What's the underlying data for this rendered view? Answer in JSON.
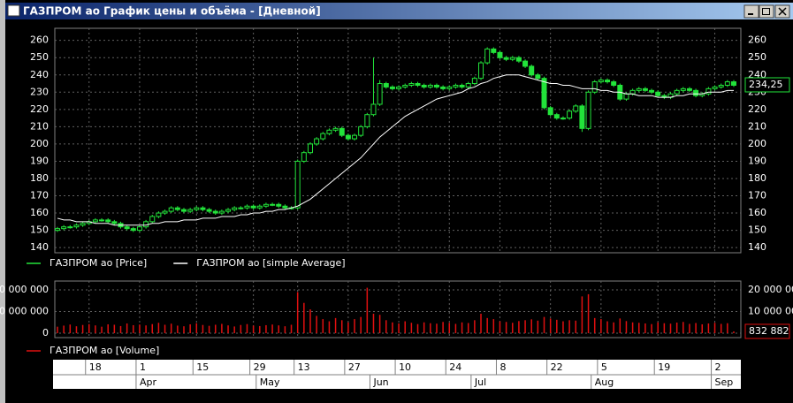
{
  "window": {
    "title": "ГАЗПРОМ ао График цены и объёма - [Дневной]"
  },
  "chart_data": [
    {
      "type": "candlestick",
      "ylim": [
        137,
        267
      ],
      "yticks": [
        140,
        150,
        160,
        170,
        180,
        190,
        200,
        210,
        220,
        230,
        240,
        250,
        260
      ],
      "grid": true,
      "xlim": [
        0,
        107
      ],
      "xticks": [
        {
          "value": 5,
          "label": "18"
        },
        {
          "value": 13,
          "label": "1"
        },
        {
          "value": 22,
          "label": "15"
        },
        {
          "value": 31,
          "label": "29"
        },
        {
          "value": 38,
          "label": "13"
        },
        {
          "value": 46,
          "label": "27"
        },
        {
          "value": 54,
          "label": "10"
        },
        {
          "value": 62,
          "label": "24"
        },
        {
          "value": 70,
          "label": "8"
        },
        {
          "value": 78,
          "label": "22"
        },
        {
          "value": 86,
          "label": "5"
        },
        {
          "value": 95,
          "label": "19"
        },
        {
          "value": 104,
          "label": "2"
        }
      ],
      "month_ticks": [
        {
          "value": 13,
          "label": "Apr"
        },
        {
          "value": 32,
          "label": "May"
        },
        {
          "value": 50,
          "label": "Jun"
        },
        {
          "value": 66,
          "label": "Jul"
        },
        {
          "value": 85,
          "label": "Aug"
        },
        {
          "value": 104,
          "label": "Sep"
        }
      ],
      "last_label": {
        "value": 234.25,
        "label": "234,25"
      },
      "series": [
        {
          "name": "ГАЗПРОМ ао [Price]",
          "color": "#22e33a",
          "open": [
            150,
            151,
            152,
            152,
            153,
            154,
            155,
            156,
            156,
            155,
            154,
            152,
            151,
            150,
            152,
            155,
            158,
            160,
            161,
            163,
            162,
            161,
            162,
            163,
            162,
            161,
            160,
            161,
            162,
            163,
            163,
            164,
            163,
            164,
            165,
            165,
            164,
            163,
            163,
            190,
            195,
            200,
            203,
            206,
            208,
            209,
            205,
            203,
            205,
            210,
            217,
            223,
            235,
            233,
            232,
            233,
            234,
            235,
            234,
            233,
            234,
            233,
            232,
            233,
            234,
            233,
            235,
            238,
            247,
            255,
            253,
            250,
            249,
            250,
            248,
            245,
            240,
            238,
            221,
            217,
            215,
            215,
            219,
            222,
            209,
            230,
            236,
            237,
            236,
            234,
            226,
            229,
            231,
            232,
            231,
            230,
            228,
            227,
            229,
            231,
            232,
            231,
            228,
            229,
            232,
            233,
            234,
            236
          ],
          "high": [
            152,
            153,
            153,
            154,
            155,
            156,
            157,
            157,
            157,
            156,
            155,
            153,
            152,
            153,
            156,
            159,
            161,
            162,
            164,
            164,
            163,
            163,
            164,
            164,
            163,
            162,
            162,
            163,
            164,
            164,
            165,
            165,
            165,
            166,
            166,
            166,
            165,
            164,
            191,
            196,
            201,
            204,
            207,
            209,
            210,
            210,
            206,
            206,
            211,
            218,
            250,
            237,
            236,
            234,
            234,
            235,
            236,
            236,
            235,
            235,
            235,
            234,
            234,
            235,
            235,
            236,
            239,
            248,
            256,
            256,
            254,
            251,
            251,
            251,
            249,
            246,
            241,
            239,
            222,
            218,
            216,
            220,
            223,
            223,
            231,
            237,
            238,
            238,
            237,
            235,
            230,
            232,
            233,
            233,
            232,
            231,
            229,
            230,
            232,
            233,
            233,
            232,
            230,
            233,
            234,
            235,
            237,
            237
          ],
          "low": [
            149,
            150,
            151,
            151,
            152,
            153,
            154,
            155,
            154,
            153,
            151,
            150,
            149,
            149,
            151,
            154,
            157,
            159,
            160,
            161,
            160,
            160,
            161,
            161,
            160,
            159,
            159,
            160,
            161,
            162,
            162,
            162,
            162,
            163,
            164,
            163,
            162,
            162,
            162,
            189,
            194,
            199,
            202,
            205,
            207,
            204,
            202,
            202,
            204,
            209,
            216,
            222,
            232,
            231,
            231,
            232,
            233,
            233,
            232,
            232,
            232,
            231,
            231,
            232,
            232,
            232,
            234,
            237,
            246,
            252,
            249,
            248,
            248,
            247,
            244,
            239,
            237,
            220,
            216,
            214,
            214,
            214,
            218,
            207,
            208,
            229,
            235,
            235,
            233,
            225,
            225,
            228,
            230,
            230,
            229,
            227,
            226,
            226,
            228,
            230,
            230,
            227,
            227,
            228,
            231,
            232,
            233,
            233
          ],
          "close": [
            151,
            152,
            152,
            153,
            154,
            155,
            156,
            156,
            155,
            154,
            152,
            151,
            150,
            152,
            155,
            158,
            160,
            161,
            163,
            162,
            161,
            162,
            163,
            162,
            161,
            160,
            161,
            162,
            163,
            163,
            164,
            163,
            164,
            165,
            165,
            164,
            163,
            163,
            190,
            195,
            200,
            203,
            206,
            208,
            209,
            205,
            203,
            205,
            210,
            217,
            223,
            235,
            233,
            232,
            233,
            234,
            235,
            234,
            233,
            234,
            233,
            232,
            233,
            234,
            233,
            235,
            238,
            247,
            255,
            253,
            250,
            249,
            250,
            248,
            245,
            240,
            238,
            221,
            217,
            215,
            215,
            219,
            222,
            209,
            230,
            236,
            237,
            236,
            234,
            226,
            229,
            231,
            232,
            231,
            230,
            228,
            227,
            229,
            231,
            232,
            231,
            228,
            229,
            232,
            233,
            234,
            236,
            234
          ]
        },
        {
          "name": "ГАЗПРОМ ао [simple Average]",
          "color": "#ffffff",
          "values": [
            157,
            156,
            156,
            155,
            155,
            155,
            154,
            154,
            154,
            153,
            153,
            153,
            153,
            153,
            153,
            154,
            154,
            155,
            155,
            155,
            156,
            156,
            156,
            157,
            157,
            157,
            158,
            158,
            158,
            159,
            159,
            160,
            160,
            161,
            161,
            162,
            162,
            163,
            164,
            166,
            168,
            171,
            174,
            177,
            180,
            183,
            186,
            189,
            192,
            196,
            200,
            204,
            207,
            210,
            213,
            216,
            218,
            220,
            222,
            224,
            226,
            227,
            228,
            229,
            230,
            232,
            233,
            235,
            236,
            238,
            239,
            240,
            240,
            240,
            239,
            238,
            237,
            236,
            235,
            235,
            234,
            234,
            233,
            232,
            232,
            232,
            231,
            231,
            230,
            230,
            229,
            229,
            228,
            228,
            228,
            227,
            227,
            227,
            228,
            228,
            229,
            229,
            229,
            230,
            230,
            230,
            231,
            231
          ]
        }
      ]
    },
    {
      "type": "bar",
      "ylim": [
        -2040000,
        24100000
      ],
      "yticks": [
        {
          "value": 0,
          "label": "0"
        },
        {
          "value": 10000000,
          "label": "10 000 000"
        },
        {
          "value": 20000000,
          "label": "20 000 000"
        }
      ],
      "grid": true,
      "xlim": [
        0,
        107
      ],
      "last_label": {
        "value": 832882,
        "label": "832 882"
      },
      "series": [
        {
          "name": "ГАЗПРОМ ао [Volume]",
          "color": "#e01010",
          "values": [
            3000000,
            3500000,
            4000000,
            3200000,
            3800000,
            4200000,
            3600000,
            3000000,
            4100000,
            3900000,
            3300000,
            4500000,
            3700000,
            4000000,
            3600000,
            4200000,
            4800000,
            3900000,
            4400000,
            3500000,
            3200000,
            4100000,
            4600000,
            3800000,
            3400000,
            3900000,
            4300000,
            3600000,
            3100000,
            3800000,
            4200000,
            3500000,
            3300000,
            3700000,
            4000000,
            3600000,
            3200000,
            3900000,
            19000000,
            14000000,
            11000000,
            8000000,
            6500000,
            5500000,
            7000000,
            6000000,
            5000000,
            6500000,
            7500000,
            21000000,
            9000000,
            8500000,
            6000000,
            5000000,
            4500000,
            5500000,
            4800000,
            4200000,
            5000000,
            4600000,
            4400000,
            5200000,
            4800000,
            4300000,
            5000000,
            4700000,
            6000000,
            9000000,
            7000000,
            6500000,
            5500000,
            5200000,
            4800000,
            5600000,
            6000000,
            6400000,
            5800000,
            7500000,
            6800000,
            6200000,
            5500000,
            6000000,
            5800000,
            17000000,
            18000000,
            7000000,
            6500000,
            5500000,
            5000000,
            6800000,
            5600000,
            5000000,
            4800000,
            4500000,
            4200000,
            5000000,
            4600000,
            4400000,
            4900000,
            5200000,
            4300000,
            4700000,
            4100000,
            4500000,
            4800000,
            4300000,
            4600000,
            832882
          ]
        }
      ]
    }
  ]
}
